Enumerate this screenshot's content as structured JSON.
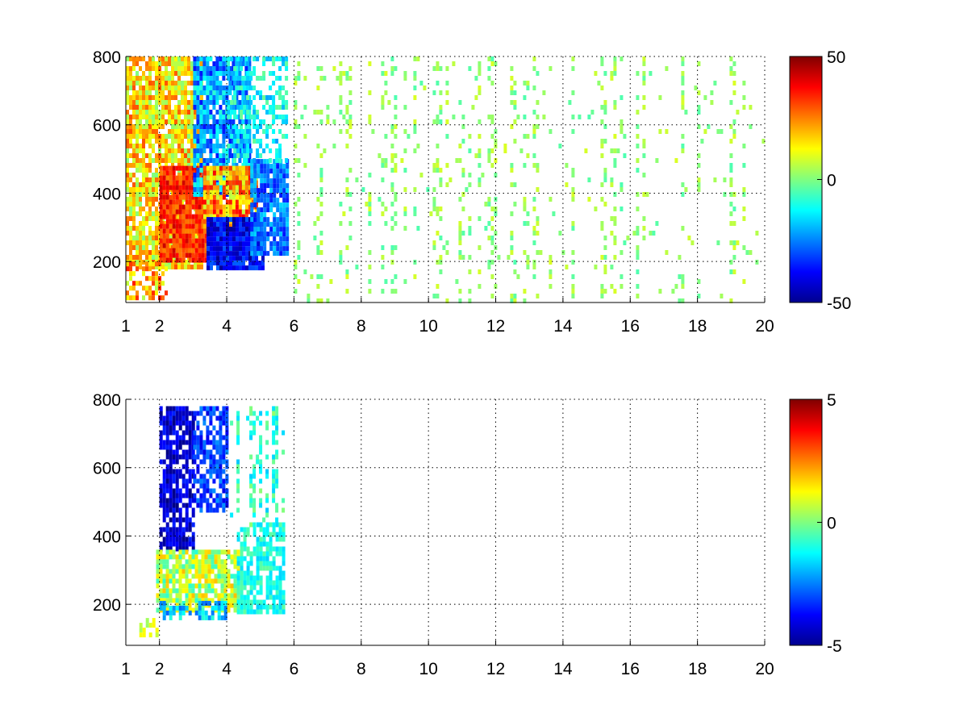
{
  "chart_data": [
    {
      "type": "heatmap",
      "title": "",
      "xlabel": "",
      "ylabel": "",
      "xlim": [
        1,
        20
      ],
      "ylim": [
        80,
        800
      ],
      "xticks": [
        1,
        2,
        4,
        6,
        8,
        10,
        12,
        14,
        16,
        18,
        20
      ],
      "xtick_labels": [
        "1",
        "2",
        "4",
        "6",
        "8",
        "10",
        "12",
        "14",
        "16",
        "18",
        "20"
      ],
      "yticks": [
        200,
        400,
        600,
        800
      ],
      "ytick_labels": [
        "200",
        "400",
        "600",
        "800"
      ],
      "grid": true,
      "colormap": "jet",
      "clim": [
        -50,
        50
      ],
      "colorbar_ticks": [
        -50,
        0,
        50
      ],
      "colorbar_labels": [
        "-50",
        "0",
        "50"
      ],
      "regions": [
        {
          "x": [
            1.0,
            3.3
          ],
          "y": [
            180,
            800
          ],
          "value": 15,
          "spread": 15,
          "density": 0.85
        },
        {
          "x": [
            2.0,
            3.4
          ],
          "y": [
            200,
            480
          ],
          "value": 34,
          "spread": 9,
          "density": 0.95
        },
        {
          "x": [
            3.0,
            4.7
          ],
          "y": [
            400,
            800
          ],
          "value": -22,
          "spread": 14,
          "density": 0.85
        },
        {
          "x": [
            3.3,
            4.9
          ],
          "y": [
            290,
            480
          ],
          "value": 22,
          "spread": 16,
          "density": 0.9
        },
        {
          "x": [
            3.4,
            5.1
          ],
          "y": [
            180,
            330
          ],
          "value": -38,
          "spread": 10,
          "density": 0.95
        },
        {
          "x": [
            4.7,
            5.8
          ],
          "y": [
            220,
            500
          ],
          "value": -26,
          "spread": 10,
          "density": 0.85
        },
        {
          "x": [
            4.0,
            5.8
          ],
          "y": [
            500,
            800
          ],
          "value": -12,
          "spread": 10,
          "density": 0.45
        },
        {
          "x": [
            1.0,
            2.2
          ],
          "y": [
            100,
            200
          ],
          "value": 20,
          "spread": 15,
          "density": 0.6
        },
        {
          "x": [
            6.0,
            20.0
          ],
          "y": [
            80,
            800
          ],
          "value": 2,
          "spread": 7,
          "density": 0.13
        }
      ]
    },
    {
      "type": "heatmap",
      "title": "",
      "xlabel": "",
      "ylabel": "",
      "xlim": [
        1,
        20
      ],
      "ylim": [
        80,
        800
      ],
      "xticks": [
        1,
        2,
        4,
        6,
        8,
        10,
        12,
        14,
        16,
        18,
        20
      ],
      "xtick_labels": [
        "1",
        "2",
        "4",
        "6",
        "8",
        "10",
        "12",
        "14",
        "16",
        "18",
        "20"
      ],
      "yticks": [
        200,
        400,
        600,
        800
      ],
      "ytick_labels": [
        "200",
        "400",
        "600",
        "800"
      ],
      "grid": true,
      "colormap": "jet",
      "clim": [
        -5,
        5
      ],
      "colorbar_ticks": [
        -5,
        0,
        5
      ],
      "colorbar_labels": [
        "-5",
        "0",
        "5"
      ],
      "regions": [
        {
          "x": [
            2.0,
            3.0
          ],
          "y": [
            360,
            780
          ],
          "value": -4.2,
          "spread": 0.8,
          "density": 0.75
        },
        {
          "x": [
            3.0,
            4.0
          ],
          "y": [
            480,
            780
          ],
          "value": -3.2,
          "spread": 0.9,
          "density": 0.7
        },
        {
          "x": [
            1.9,
            4.3
          ],
          "y": [
            180,
            360
          ],
          "value": 0.5,
          "spread": 1.4,
          "density": 0.85
        },
        {
          "x": [
            4.3,
            5.7
          ],
          "y": [
            180,
            440
          ],
          "value": -1.0,
          "spread": 0.7,
          "density": 0.75
        },
        {
          "x": [
            4.0,
            5.7
          ],
          "y": [
            440,
            780
          ],
          "value": -0.8,
          "spread": 1.0,
          "density": 0.25
        },
        {
          "x": [
            2.0,
            4.0
          ],
          "y": [
            160,
            210
          ],
          "value": -1.8,
          "spread": 1.0,
          "density": 0.6
        },
        {
          "x": [
            1.4,
            2.0
          ],
          "y": [
            110,
            160
          ],
          "value": 0.8,
          "spread": 0.6,
          "density": 0.5
        }
      ]
    }
  ]
}
